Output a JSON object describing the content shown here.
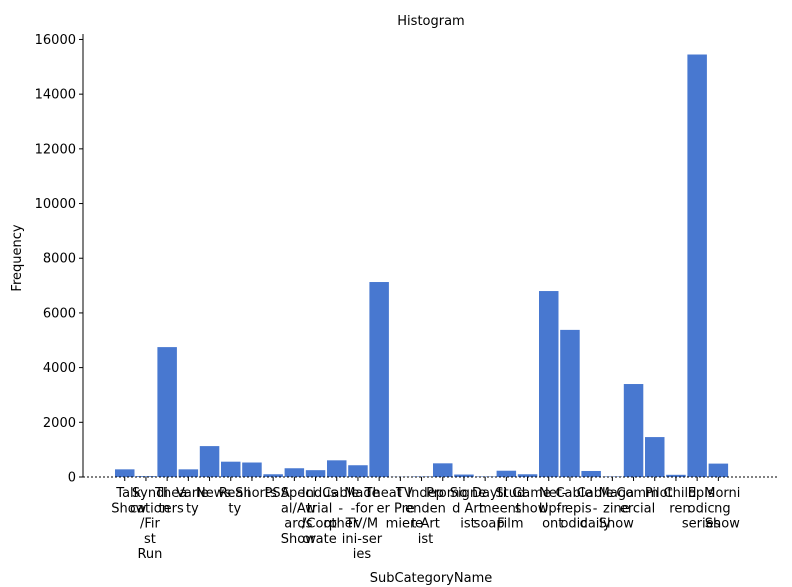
{
  "chart_data": {
    "type": "bar",
    "title": "Histogram",
    "xlabel": "SubCategoryName",
    "ylabel": "Frequency",
    "ylim": [
      0,
      16200
    ],
    "yticks": [
      0,
      2000,
      4000,
      6000,
      8000,
      10000,
      12000,
      14000,
      16000
    ],
    "bar_color": "#4878d0",
    "categories": [
      "Talk Show",
      "Syndication/First Run",
      "Theaters",
      "Variety",
      "News",
      "Reality",
      "Shorts",
      "PSA",
      "Special/Awards Show",
      "Industrial/Corporate",
      "Cable - other",
      "Made-for-TV/Mini-series",
      "Theater",
      "TV Premiere",
      "Independent Artist",
      "Promo",
      "Signed Artist",
      "Daytime soap",
      "Student Film",
      "Game show",
      "Net-Upfront",
      "Cable - episodic",
      "Cable - daily",
      "Magazine Show",
      "Commercial",
      "Pilot",
      "Children",
      "Episodic series",
      "Morning Show"
    ],
    "tick_labels": [
      [
        "Talk",
        "Show"
      ],
      [
        "Syndi",
        "cation",
        "/Fir",
        "st",
        "Run"
      ],
      [
        "Thea",
        "ters"
      ],
      [
        "Varie",
        "ty"
      ],
      [
        "News"
      ],
      [
        "Reali",
        "ty"
      ],
      [
        "Shorts"
      ],
      [
        "PSA"
      ],
      [
        "Speci",
        "al/Aw",
        "ards",
        "Show"
      ],
      [
        "Indus",
        "trial",
        "/Corp",
        "orate"
      ],
      [
        "Cable",
        "-",
        "other"
      ],
      [
        "Made",
        "-for",
        "TV/M",
        "ini-ser",
        "ies"
      ],
      [
        "Theat",
        "er"
      ],
      [
        "TV",
        "Pre",
        "miere"
      ],
      [
        "Indep",
        "enden",
        "t Art",
        "ist"
      ],
      [
        "Promo"
      ],
      [
        "Signe",
        "d Art",
        "ist"
      ],
      [
        "Dayti",
        "me",
        "soap"
      ],
      [
        "Stud",
        "ent",
        "Film"
      ],
      [
        "Game",
        "show"
      ],
      [
        "Net-",
        "Upfr",
        "ont"
      ],
      [
        "Cable",
        "- epis",
        "odic"
      ],
      [
        "Cable",
        "-",
        "daily"
      ],
      [
        "Maga",
        "zine",
        "Show"
      ],
      [
        "Comm",
        "ercial"
      ],
      [
        "Pilot"
      ],
      [
        "Child",
        "ren"
      ],
      [
        "Epis",
        "odic",
        "series"
      ],
      [
        "Morni",
        "ng",
        "Show"
      ]
    ],
    "values": [
      280,
      30,
      4750,
      280,
      1130,
      560,
      530,
      100,
      320,
      250,
      610,
      430,
      7130,
      10,
      20,
      500,
      90,
      20,
      230,
      100,
      6800,
      5380,
      220,
      20,
      3400,
      1460,
      80,
      15450,
      490
    ],
    "grid": false,
    "legend": "none"
  }
}
